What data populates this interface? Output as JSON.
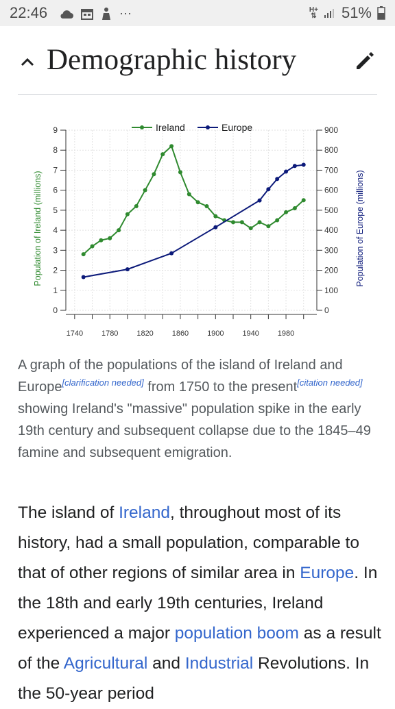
{
  "status_bar": {
    "time": "22:46",
    "network": "H+",
    "battery": "51%",
    "more": "···",
    "icons": [
      "cloud-icon",
      "calendar-icon",
      "cleaning-icon",
      "more-icon"
    ]
  },
  "section": {
    "title": "Demographic history",
    "collapse_icon": "chevron-up-icon",
    "edit_icon": "pencil-icon"
  },
  "chart_data": {
    "type": "line",
    "legend": [
      "Ireland",
      "Europe"
    ],
    "legend_position": "top",
    "ylabel_left": "Population of Ireland (millions)",
    "ylabel_right": "Population of Europe (millions)",
    "ylim_left": [
      0,
      9
    ],
    "ylim_right": [
      0,
      900
    ],
    "yticks_left": [
      "0",
      "1",
      "2",
      "3",
      "4",
      "5",
      "6",
      "7",
      "8",
      "9"
    ],
    "yticks_right": [
      "0",
      "100",
      "200",
      "300",
      "400",
      "500",
      "600",
      "700",
      "800",
      "900"
    ],
    "xticks": [
      "1740",
      "1780",
      "1820",
      "1860",
      "1900",
      "1940",
      "1980"
    ],
    "xlim": [
      1730,
      2015
    ],
    "grid": true,
    "series": [
      {
        "name": "Ireland",
        "axis": "left",
        "color": "#2f8a2f",
        "x": [
          1750,
          1760,
          1770,
          1780,
          1790,
          1800,
          1810,
          1820,
          1830,
          1840,
          1850,
          1860,
          1870,
          1880,
          1890,
          1900,
          1910,
          1920,
          1930,
          1940,
          1950,
          1960,
          1970,
          1980,
          1990,
          2000
        ],
        "values": [
          2.8,
          3.2,
          3.5,
          3.6,
          4.0,
          4.8,
          5.2,
          6.0,
          6.8,
          7.8,
          8.2,
          6.9,
          5.8,
          5.4,
          5.2,
          4.7,
          4.5,
          4.4,
          4.4,
          4.1,
          4.4,
          4.2,
          4.5,
          4.9,
          5.1,
          5.5
        ]
      },
      {
        "name": "Europe",
        "axis": "right",
        "color": "#0c1a7a",
        "x": [
          1750,
          1800,
          1850,
          1900,
          1950,
          1960,
          1970,
          1980,
          1990,
          2000
        ],
        "values": [
          166,
          205,
          285,
          415,
          549,
          605,
          656,
          693,
          721,
          727
        ]
      }
    ]
  },
  "caption": {
    "part1": "A graph of the populations of the island of Ireland and Europe",
    "sup1": "[clarification needed]",
    "part2": " from 1750 to the present",
    "sup2": "[citation needed]",
    "part3": " showing Ireland's \"massive\" population spike in the early 19th century and subsequent collapse due to the 1845–49 famine and subsequent emigration."
  },
  "body": {
    "t1": "The island of ",
    "l1": "Ireland",
    "t2": ", throughout most of its history, had a small population, comparable to that of other regions of similar area in ",
    "l2": "Europe",
    "t3": ". In the 18th and early 19th centuries, Ireland experienced a major ",
    "l3": "population boom",
    "t4": " as a result of the ",
    "l4": "Agricultural",
    "t5": " and ",
    "l5": "Industrial",
    "t6": " Revolutions. In the 50-year period"
  }
}
